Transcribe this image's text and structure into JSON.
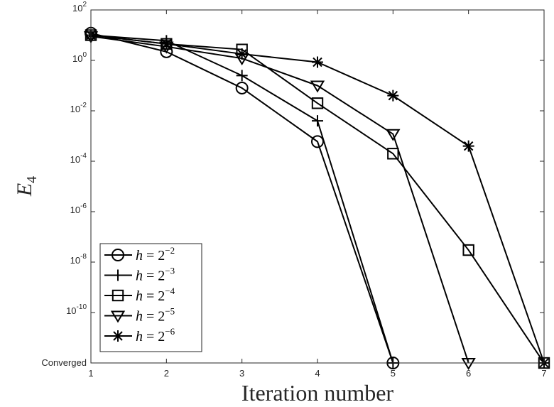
{
  "chart_data": {
    "type": "line",
    "xlabel": "Iteration number",
    "ylabel": "E",
    "ylabel_sub": "4",
    "x_scale": "linear",
    "y_scale": "log",
    "xlim": [
      1,
      7
    ],
    "ylim": [
      1e-12,
      100
    ],
    "x_ticks": [
      "1",
      "2",
      "3",
      "4",
      "5",
      "6",
      "7"
    ],
    "y_ticks": [
      {
        "value": 100,
        "base": "10",
        "exp": "2"
      },
      {
        "value": 1,
        "base": "10",
        "exp": "0"
      },
      {
        "value": 0.01,
        "base": "10",
        "exp": "-2"
      },
      {
        "value": 0.0001,
        "base": "10",
        "exp": "-4"
      },
      {
        "value": 1e-06,
        "base": "10",
        "exp": "-6"
      },
      {
        "value": 1e-08,
        "base": "10",
        "exp": "-8"
      },
      {
        "value": 1e-10,
        "base": "10",
        "exp": "-10"
      }
    ],
    "converged_label": "Converged",
    "converged_value": 1e-12,
    "grid": false,
    "legend_position": "bottom-left",
    "series": [
      {
        "name": "h = 2^-2",
        "legend_lhs": "h = 2",
        "legend_exp": "−2",
        "marker": "circle",
        "x": [
          1,
          2,
          3,
          4,
          5
        ],
        "y": [
          12,
          2.2,
          0.08,
          0.0006,
          "Converged"
        ]
      },
      {
        "name": "h = 2^-3",
        "legend_lhs": "h = 2",
        "legend_exp": "−3",
        "marker": "plus",
        "x": [
          1,
          2,
          3,
          4,
          5
        ],
        "y": [
          10,
          6,
          0.25,
          0.004,
          "Converged"
        ]
      },
      {
        "name": "h = 2^-4",
        "legend_lhs": "h = 2",
        "legend_exp": "−4",
        "marker": "square",
        "x": [
          1,
          2,
          3,
          4,
          5,
          6,
          7
        ],
        "y": [
          10,
          4.5,
          2.7,
          0.02,
          0.0002,
          3e-08,
          "Converged"
        ]
      },
      {
        "name": "h = 2^-5",
        "legend_lhs": "h = 2",
        "legend_exp": "−5",
        "marker": "triangle-down",
        "x": [
          1,
          2,
          3,
          4,
          5,
          6
        ],
        "y": [
          9,
          3.5,
          1.2,
          0.1,
          0.0012,
          "Converged"
        ]
      },
      {
        "name": "h = 2^-6",
        "legend_lhs": "h = 2",
        "legend_exp": "−6",
        "marker": "asterisk",
        "x": [
          1,
          2,
          3,
          4,
          5,
          6,
          7
        ],
        "y": [
          10,
          4.5,
          1.8,
          0.85,
          0.04,
          0.0004,
          "Converged"
        ]
      }
    ]
  }
}
